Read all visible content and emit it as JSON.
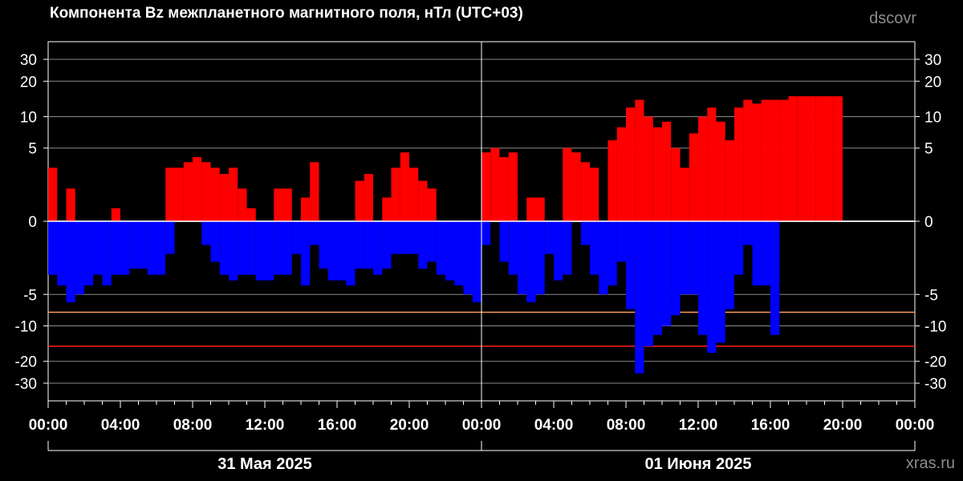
{
  "chart_data": {
    "type": "bar",
    "title": "Компонента Bz межпланетного магнитного поля, нТл (UTC+03)",
    "source_label": "dscovr",
    "credit": "xras.ru",
    "y_scale": "symlog",
    "ylim": [
      -35,
      35
    ],
    "y_ticks": [
      {
        "value": 30,
        "label": "30"
      },
      {
        "value": 20,
        "label": "20"
      },
      {
        "value": 10,
        "label": "10"
      },
      {
        "value": 5,
        "label": "5"
      },
      {
        "value": 0,
        "label": "0"
      },
      {
        "value": -5,
        "label": "-5"
      },
      {
        "value": -10,
        "label": "-10"
      },
      {
        "value": -20,
        "label": "-20"
      },
      {
        "value": -30,
        "label": "-30"
      }
    ],
    "x_range_hours": [
      0,
      48
    ],
    "x_tick_labels": [
      "00:00",
      "04:00",
      "08:00",
      "12:00",
      "16:00",
      "20:00",
      "00:00",
      "04:00",
      "08:00",
      "12:00",
      "16:00",
      "20:00",
      "00:00"
    ],
    "days": [
      "31 Мая 2025",
      "01 Июня 2025"
    ],
    "threshold_lines": [
      {
        "value": -7.5,
        "color": "#ff9a5a"
      },
      {
        "value": -15,
        "color": "#ff2020"
      }
    ],
    "positive_color": "#ff0000",
    "negative_color": "#0000ff",
    "series": [
      {
        "x_hours": [
          0.0,
          0.5,
          1.0,
          1.5,
          2.0,
          2.5,
          3.0,
          3.5,
          4.0,
          4.5,
          5.0,
          5.5,
          6.0,
          6.5,
          7.0,
          7.5,
          8.0,
          8.5,
          9.0,
          9.5,
          10.0,
          10.5,
          11.0,
          11.5,
          12.0,
          12.5,
          13.0,
          13.5,
          14.0,
          14.5,
          15.0,
          15.5,
          16.0,
          16.5,
          17.0,
          17.5,
          18.0,
          18.5,
          19.0,
          19.5,
          20.0,
          20.5,
          21.0,
          21.5,
          22.0,
          22.5,
          23.0,
          23.5,
          24.0,
          24.5,
          25.0,
          25.5,
          26.0,
          26.5,
          27.0,
          27.5,
          28.0,
          28.5,
          29.0,
          29.5,
          30.0,
          30.5,
          31.0,
          31.5,
          32.0,
          32.5,
          33.0,
          33.5,
          34.0,
          34.5,
          35.0,
          35.5,
          36.0,
          36.5,
          37.0,
          37.5,
          38.0,
          38.5,
          39.0,
          39.5,
          40.0,
          40.5,
          41.0,
          41.5,
          42.0,
          42.5,
          43.0,
          43.5
        ],
        "y_max": [
          3,
          0,
          1.5,
          0,
          0,
          0,
          0,
          0.5,
          0,
          0,
          0,
          0,
          0,
          3,
          3,
          3.5,
          4,
          3.5,
          3,
          2.5,
          3,
          1.5,
          0.5,
          0,
          0,
          1.5,
          1.5,
          0,
          1,
          3.5,
          0,
          0,
          0,
          0,
          2,
          2.5,
          0,
          1,
          3,
          4.5,
          3,
          2,
          1.5,
          0,
          0,
          0,
          0,
          0,
          4.5,
          5,
          4,
          4.5,
          0,
          1,
          1,
          0,
          0,
          5,
          4.5,
          3.5,
          3,
          0,
          6,
          8,
          12,
          14,
          10,
          8,
          9,
          5,
          3,
          7,
          10,
          12,
          9,
          6,
          12,
          14,
          13,
          14,
          14,
          14,
          15,
          15,
          15,
          15,
          15,
          15
        ],
        "y_min": [
          -3,
          -4,
          -6,
          -5,
          -4,
          -3,
          -4,
          -3,
          -3,
          -2.5,
          -2.5,
          -3,
          -3,
          -1.5,
          0,
          0,
          0,
          -1,
          -2,
          -3,
          -3.5,
          -3,
          -3,
          -3.5,
          -3.5,
          -3,
          -3,
          -1.5,
          -4,
          -1,
          -2.5,
          -3.5,
          -3.5,
          -4,
          -2.5,
          -2.5,
          -3,
          -2.5,
          -1.5,
          -1.5,
          -1.5,
          -2.5,
          -2,
          -3,
          -3.5,
          -4,
          -5,
          -6,
          -1,
          0,
          -2,
          -3,
          -5,
          -6,
          -5,
          -1.5,
          -3.5,
          -3,
          0,
          -1,
          -3,
          -5,
          -4,
          -2,
          -7,
          -25,
          -15,
          -12,
          -10,
          -8,
          -5,
          -5,
          -12,
          -17,
          -14,
          -7,
          -3,
          -1,
          -4,
          -4,
          -12,
          0,
          0,
          0,
          0,
          0,
          0,
          0
        ]
      }
    ]
  }
}
